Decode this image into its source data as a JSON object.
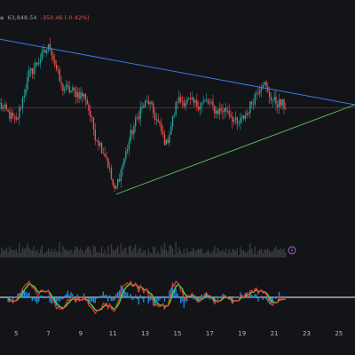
{
  "header": {
    "price": "63,848.54",
    "change": "-350.46 (-0.42%)",
    "change_color": "#e0524a"
  },
  "colors": {
    "background": "#131418",
    "candle_up": "#26a69a",
    "candle_down": "#ef5350",
    "resistance_line": "#3b78e7",
    "support_line": "#56b35a",
    "horizontal_level": "#b8453e",
    "volume": "#3a3d45",
    "osc_fast": "#e53935",
    "osc_slow": "#43d843",
    "osc_hist": "#2196f3",
    "zero_line": "#ffffff",
    "axis_text": "#b5b8bf"
  },
  "icons": {
    "alert": "lightning-icon"
  },
  "chart_data": {
    "type": "candlestick",
    "title": "",
    "xlabel": "",
    "ylabel": "",
    "x_tick_labels": [
      "5",
      "7",
      "9",
      "11",
      "13",
      "15",
      "17",
      "19",
      "21",
      "23",
      "25"
    ],
    "x_range": [
      4,
      26
    ],
    "y_range": [
      56500,
      69500
    ],
    "horizontal_level": 64300,
    "key_points": [
      {
        "day": 4.0,
        "price": 64500
      },
      {
        "day": 5.0,
        "price": 63400
      },
      {
        "day": 5.8,
        "price": 66400
      },
      {
        "day": 6.5,
        "price": 67400
      },
      {
        "day": 7.1,
        "price": 68200
      },
      {
        "day": 7.8,
        "price": 65600
      },
      {
        "day": 8.6,
        "price": 65300
      },
      {
        "day": 9.3,
        "price": 65000
      },
      {
        "day": 9.9,
        "price": 62600
      },
      {
        "day": 10.6,
        "price": 61200
      },
      {
        "day": 11.1,
        "price": 59000
      },
      {
        "day": 11.5,
        "price": 60400
      },
      {
        "day": 12.1,
        "price": 62600
      },
      {
        "day": 12.7,
        "price": 64200
      },
      {
        "day": 13.2,
        "price": 64700
      },
      {
        "day": 13.8,
        "price": 63300
      },
      {
        "day": 14.3,
        "price": 62000
      },
      {
        "day": 15.0,
        "price": 64800
      },
      {
        "day": 15.6,
        "price": 64700
      },
      {
        "day": 16.2,
        "price": 64500
      },
      {
        "day": 16.8,
        "price": 64700
      },
      {
        "day": 17.4,
        "price": 64100
      },
      {
        "day": 18.1,
        "price": 64200
      },
      {
        "day": 18.7,
        "price": 63200
      },
      {
        "day": 19.3,
        "price": 64000
      },
      {
        "day": 19.9,
        "price": 65300
      },
      {
        "day": 20.3,
        "price": 66000
      },
      {
        "day": 20.6,
        "price": 65200
      },
      {
        "day": 21.0,
        "price": 64700
      },
      {
        "day": 21.5,
        "price": 64500
      },
      {
        "day": 21.7,
        "price": 64400
      }
    ],
    "trendlines": [
      {
        "name": "",
        "color_key": "resistance_line",
        "from": {
          "day": 4.0,
          "price": 68600
        },
        "to": {
          "day": 26.0,
          "price": 64500
        }
      },
      {
        "name": "",
        "color_key": "support_line",
        "from": {
          "day": 11.2,
          "price": 58900
        },
        "to": {
          "day": 26.0,
          "price": 64500
        }
      }
    ]
  }
}
